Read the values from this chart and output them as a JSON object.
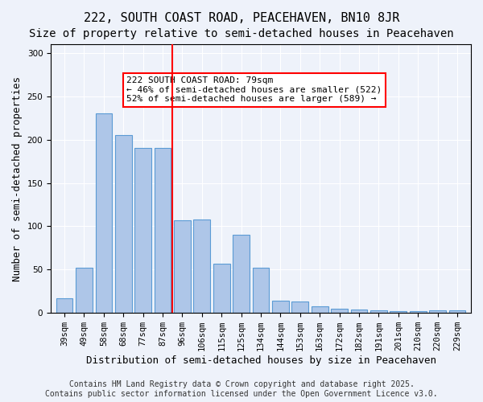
{
  "title1": "222, SOUTH COAST ROAD, PEACEHAVEN, BN10 8JR",
  "title2": "Size of property relative to semi-detached houses in Peacehaven",
  "xlabel": "Distribution of semi-detached houses by size in Peacehaven",
  "ylabel": "Number of semi-detached properties",
  "categories": [
    "39sqm",
    "49sqm",
    "58sqm",
    "68sqm",
    "77sqm",
    "87sqm",
    "96sqm",
    "106sqm",
    "115sqm",
    "125sqm",
    "134sqm",
    "144sqm",
    "153sqm",
    "163sqm",
    "172sqm",
    "182sqm",
    "191sqm",
    "201sqm",
    "210sqm",
    "220sqm",
    "229sqm"
  ],
  "values": [
    17,
    52,
    230,
    205,
    190,
    190,
    107,
    108,
    57,
    90,
    52,
    14,
    13,
    8,
    5,
    4,
    3,
    2,
    2,
    3,
    3
  ],
  "bar_color": "#aec6e8",
  "bar_edge_color": "#5b9bd5",
  "property_line_x": 5.5,
  "property_size": "79sqm",
  "annotation_text": "222 SOUTH COAST ROAD: 79sqm\n← 46% of semi-detached houses are smaller (522)\n52% of semi-detached houses are larger (589) →",
  "vline_color": "red",
  "ylim": [
    0,
    310
  ],
  "yticks": [
    0,
    50,
    100,
    150,
    200,
    250,
    300
  ],
  "footer1": "Contains HM Land Registry data © Crown copyright and database right 2025.",
  "footer2": "Contains public sector information licensed under the Open Government Licence v3.0.",
  "bg_color": "#eef2fa",
  "plot_bg": "#eef2fa",
  "title1_fontsize": 11,
  "title2_fontsize": 10,
  "xlabel_fontsize": 9,
  "ylabel_fontsize": 9,
  "tick_fontsize": 7.5,
  "annotation_fontsize": 8,
  "footer_fontsize": 7
}
